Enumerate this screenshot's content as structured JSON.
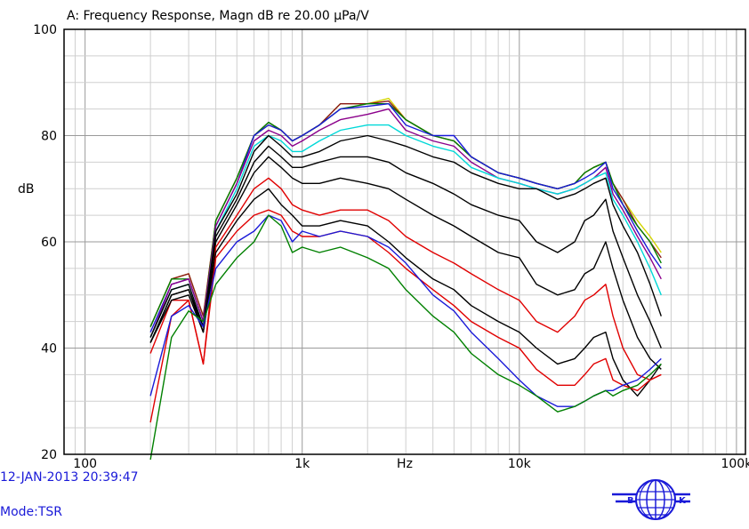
{
  "header": {
    "title": "A: Frequency Response, Magn dB re 20.00 µPa/V"
  },
  "footer": {
    "timestamp": "12-JAN-2013 20:39:47",
    "mode": "Mode:TSR"
  },
  "logo": {
    "letters_left": "B",
    "letters_right": "K",
    "color": "#1a1ad8"
  },
  "chart_data": {
    "type": "line",
    "title": "A: Frequency Response, Magn dB re 20.00 µPa/V",
    "xlabel": "Hz",
    "ylabel": "dB",
    "x_scale": "log",
    "xlim": [
      80,
      110000
    ],
    "ylim": [
      20,
      100
    ],
    "x_ticks": [
      100,
      1000,
      10000,
      100000
    ],
    "x_tick_labels": [
      "100",
      "1k",
      "10k",
      "100k"
    ],
    "y_ticks": [
      20,
      40,
      60,
      80,
      100
    ],
    "y_tick_labels": [
      "20",
      "40",
      "60",
      "80",
      "100"
    ],
    "grid": true,
    "x": [
      200,
      250,
      300,
      350,
      400,
      500,
      600,
      700,
      800,
      900,
      1000,
      1200,
      1500,
      2000,
      2500,
      3000,
      4000,
      5000,
      6000,
      8000,
      10000,
      12000,
      15000,
      18000,
      20000,
      22000,
      25000,
      27000,
      30000,
      35000,
      40000,
      45000
    ],
    "series": [
      {
        "color": "#d4d400",
        "values": [
          44,
          53,
          54,
          46,
          64,
          72,
          80,
          82,
          81,
          79,
          80,
          82,
          86,
          86,
          87,
          83,
          80,
          79,
          76,
          73,
          72,
          71,
          70,
          71,
          73,
          74,
          75,
          71,
          68,
          64,
          61,
          58
        ]
      },
      {
        "color": "#8b1a1a",
        "values": [
          44,
          53,
          54,
          46,
          64,
          72,
          80,
          82.5,
          81,
          79,
          80,
          82,
          86,
          86,
          86.5,
          83,
          80,
          79,
          76,
          73,
          72,
          71,
          70,
          71,
          73,
          74,
          75,
          71,
          68,
          63,
          60,
          57
        ]
      },
      {
        "color": "#008000",
        "values": [
          44,
          53,
          53,
          45,
          64,
          72,
          80,
          82.5,
          81,
          79,
          80,
          82,
          85,
          86,
          86,
          83,
          80,
          79,
          76,
          73,
          72,
          71,
          70,
          71,
          73,
          74,
          75,
          71,
          67,
          63,
          60,
          56
        ]
      },
      {
        "color": "#1a1ad8",
        "values": [
          43,
          52,
          53,
          45,
          63,
          71,
          80,
          82,
          81,
          79,
          80,
          82,
          85,
          85.5,
          86,
          82,
          80,
          80,
          76,
          73,
          72,
          71,
          70,
          71,
          72,
          73,
          75,
          70,
          67,
          62,
          58,
          55
        ]
      },
      {
        "color": "#8b008b",
        "values": [
          42,
          52,
          53,
          45,
          63,
          71,
          79,
          81,
          80,
          78,
          79,
          81,
          83,
          84,
          85,
          81,
          79,
          78,
          75,
          72,
          71,
          70,
          69,
          70,
          71,
          72,
          74,
          69,
          66,
          61,
          57,
          53
        ]
      },
      {
        "color": "#00d8d8",
        "values": [
          42,
          51,
          52,
          44,
          62,
          70,
          78,
          80,
          79,
          77,
          77,
          79,
          81,
          82,
          82,
          80,
          78,
          77,
          74,
          72,
          71,
          70,
          69,
          70,
          71,
          72,
          73,
          68,
          65,
          60,
          55,
          50
        ]
      },
      {
        "color": "#000000",
        "values": [
          42,
          51,
          52,
          44,
          62,
          69,
          77,
          80,
          78,
          76,
          76,
          77,
          79,
          80,
          79,
          78,
          76,
          75,
          73,
          71,
          70,
          70,
          68,
          69,
          70,
          71,
          72,
          67,
          63,
          58,
          52,
          46
        ]
      },
      {
        "color": "#000000",
        "values": [
          41,
          50,
          51,
          44,
          61,
          68,
          75,
          78,
          76,
          74,
          74,
          75,
          76,
          76,
          75,
          73,
          71,
          69,
          67,
          65,
          64,
          60,
          58,
          60,
          64,
          65,
          68,
          62,
          57,
          50,
          45,
          40
        ]
      },
      {
        "color": "#000000",
        "values": [
          41,
          50,
          51,
          43,
          60,
          67,
          73,
          76,
          74,
          72,
          71,
          71,
          72,
          71,
          70,
          68,
          65,
          63,
          61,
          58,
          57,
          52,
          50,
          51,
          54,
          55,
          60,
          55,
          49,
          42,
          38,
          36
        ]
      },
      {
        "color": "#e00000",
        "values": [
          39,
          49,
          49,
          37,
          59,
          65,
          70,
          72,
          70,
          67,
          66,
          65,
          66,
          66,
          64,
          61,
          58,
          56,
          54,
          51,
          49,
          45,
          43,
          46,
          49,
          50,
          52,
          46,
          40,
          35,
          34,
          35
        ]
      },
      {
        "color": "#000000",
        "values": [
          41,
          49,
          50,
          43,
          58,
          64,
          68,
          70,
          67,
          65,
          63,
          63,
          64,
          63,
          60,
          57,
          53,
          51,
          48,
          45,
          43,
          40,
          37,
          38,
          40,
          42,
          43,
          38,
          34,
          31,
          34,
          37
        ]
      },
      {
        "color": "#e00000",
        "values": [
          26,
          46,
          49,
          37,
          57,
          62,
          65,
          66,
          65,
          62,
          61,
          61,
          62,
          61,
          58,
          55,
          51,
          48,
          45,
          42,
          40,
          36,
          33,
          33,
          35,
          37,
          38,
          34,
          33,
          32,
          34,
          35
        ]
      },
      {
        "color": "#1a1ad8",
        "values": [
          31,
          46,
          48,
          44,
          55,
          60,
          62,
          65,
          64,
          60,
          62,
          61,
          62,
          61,
          59,
          56,
          50,
          47,
          43,
          38,
          34,
          31,
          29,
          29,
          30,
          31,
          32,
          32,
          33,
          34,
          36,
          38
        ]
      },
      {
        "color": "#008000",
        "values": [
          19,
          42,
          47,
          45,
          52,
          57,
          60,
          65,
          63,
          58,
          59,
          58,
          59,
          57,
          55,
          51,
          46,
          43,
          39,
          35,
          33,
          31,
          28,
          29,
          30,
          31,
          32,
          31,
          32,
          33,
          35,
          37
        ]
      }
    ]
  }
}
